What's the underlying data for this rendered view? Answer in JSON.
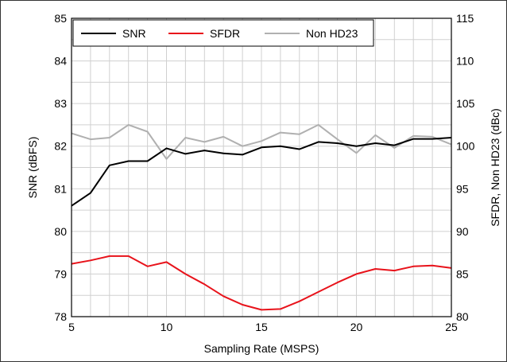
{
  "chart_data": {
    "type": "line",
    "xlabel": "Sampling Rate (MSPS)",
    "ylabel_left": "SNR (dBFS)",
    "ylabel_right": "SFDR, Non HD23 (dBc)",
    "xlim": [
      5,
      25
    ],
    "ylim_left": [
      78,
      85
    ],
    "ylim_right": [
      80,
      115
    ],
    "x_ticks": [
      5,
      10,
      15,
      20,
      25
    ],
    "y_left_ticks": [
      78,
      79,
      80,
      81,
      82,
      83,
      84,
      85
    ],
    "y_right_ticks": [
      80,
      85,
      90,
      95,
      100,
      105,
      110,
      115
    ],
    "grid": true,
    "legend_position": "top-center",
    "x": [
      5,
      6,
      7,
      8,
      9,
      10,
      11,
      12,
      13,
      14,
      15,
      16,
      17,
      18,
      19,
      20,
      21,
      22,
      23,
      24,
      25
    ],
    "series": [
      {
        "name": "SNR",
        "axis": "left",
        "color": "#000000",
        "values": [
          80.6,
          80.9,
          81.55,
          81.65,
          81.65,
          81.95,
          81.82,
          81.9,
          81.83,
          81.8,
          81.97,
          82.0,
          81.93,
          82.1,
          82.07,
          82.0,
          82.07,
          82.02,
          82.17,
          82.17,
          82.2
        ]
      },
      {
        "name": "SFDR",
        "axis": "right",
        "color": "#e8131b",
        "values": [
          86.2,
          86.6,
          87.1,
          87.1,
          85.9,
          86.4,
          85.0,
          83.8,
          82.4,
          81.4,
          80.8,
          80.9,
          81.8,
          82.9,
          84.0,
          85.0,
          85.6,
          85.4,
          85.9,
          86.0,
          85.7
        ]
      },
      {
        "name": "Non HD23",
        "axis": "right",
        "color": "#b0b0b0",
        "values": [
          101.5,
          100.8,
          101.0,
          102.5,
          101.7,
          98.5,
          101.0,
          100.5,
          101.1,
          100.0,
          100.6,
          101.6,
          101.4,
          102.5,
          100.8,
          99.2,
          101.3,
          99.8,
          101.2,
          101.1,
          100.2
        ]
      }
    ]
  }
}
